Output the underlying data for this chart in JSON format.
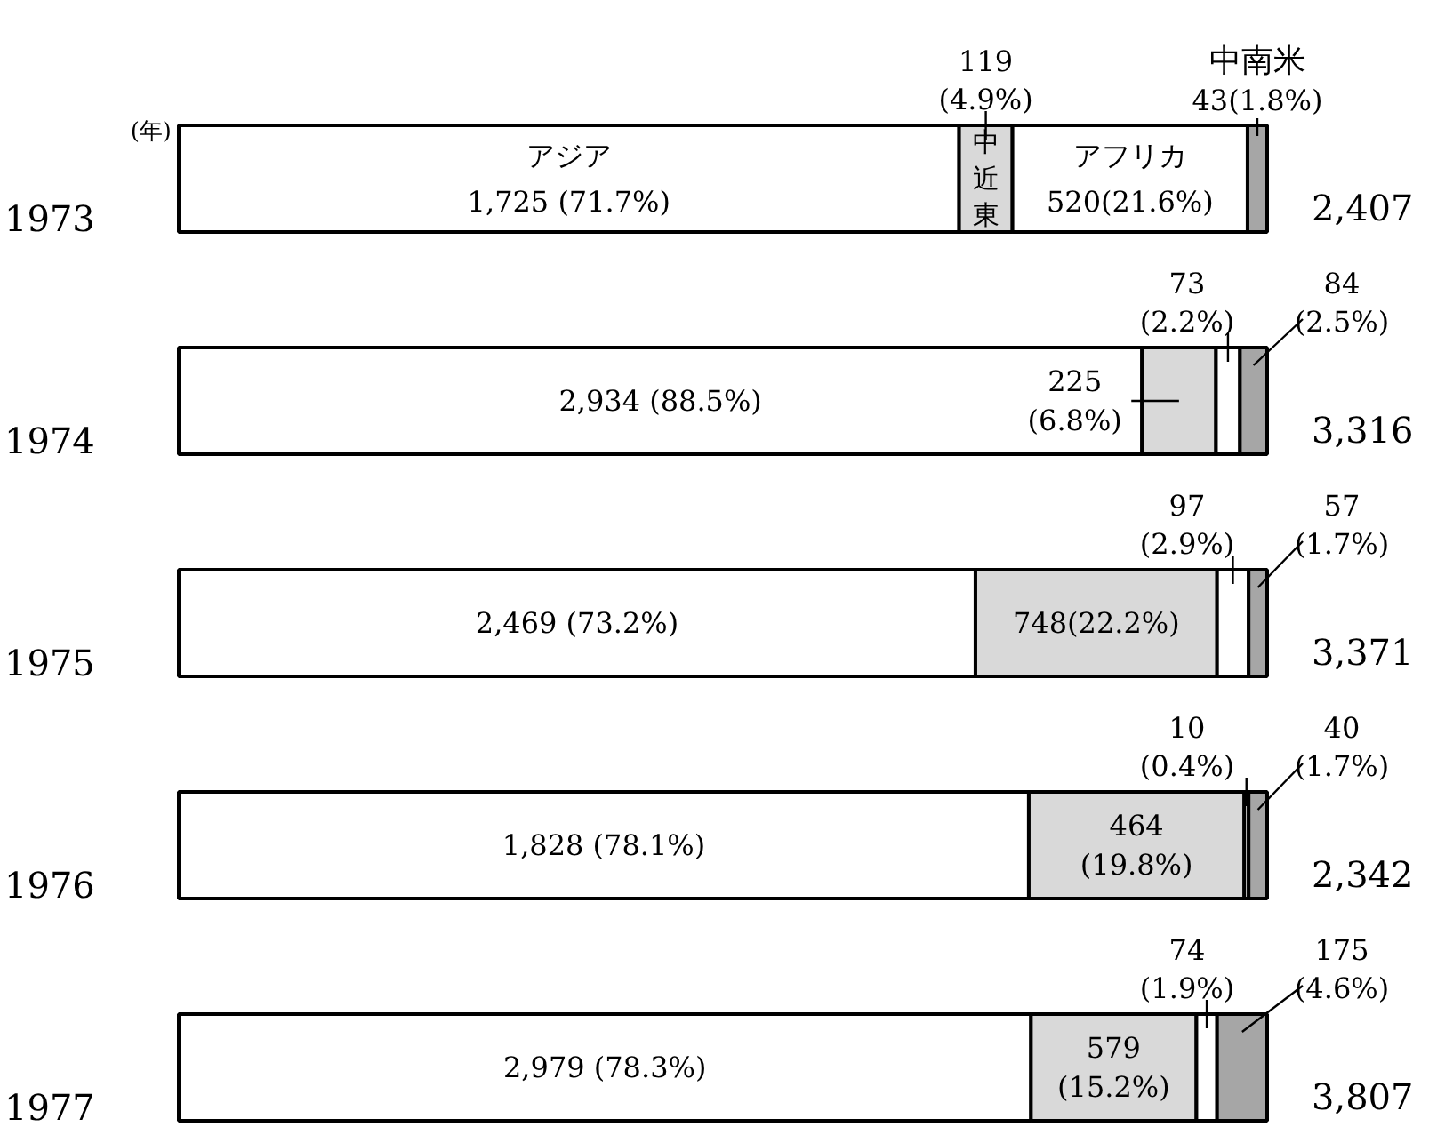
{
  "chart_data": {
    "type": "bar",
    "orientation": "horizontal",
    "stacked": true,
    "categories": [
      "1973",
      "1974",
      "1975",
      "1976",
      "1977"
    ],
    "ylabel": "(年)",
    "xlim": [
      0,
      100
    ],
    "tick_labels": "y",
    "series": [
      {
        "name": "アジア",
        "color": "#ffffff",
        "values": [
          71.7,
          88.5,
          73.2,
          78.1,
          78.3
        ],
        "value_labels": [
          "1,725 (71.7%)",
          "2,934 (88.5%)",
          "2,469 (73.2%)",
          "1,828 (78.1%)",
          "2,979 (78.3%)"
        ]
      },
      {
        "name": "中近東",
        "color": "#d9d9d9",
        "values": [
          4.9,
          6.8,
          22.2,
          19.8,
          15.2
        ],
        "value_labels": [
          "119 (4.9%)",
          "225 (6.8%)",
          "748(22.2%)",
          "464 (19.8%)",
          "579 (15.2%)"
        ]
      },
      {
        "name": "アフリカ",
        "color": "#ffffff",
        "values": [
          21.6,
          2.2,
          2.9,
          0.4,
          1.9
        ],
        "value_labels": [
          "520(21.6%)",
          "73 (2.2%)",
          "97 (2.9%)",
          "10 (0.4%)",
          "74 (1.9%)"
        ]
      },
      {
        "name": "中南米",
        "color": "#a6a6a6",
        "values": [
          1.8,
          2.5,
          1.7,
          1.7,
          4.6
        ],
        "value_labels": [
          "43(1.8%)",
          "84 (2.5%)",
          "57 (1.7%)",
          "40 (1.7%)",
          "175 (4.6%)"
        ]
      }
    ],
    "annotations": [
      "2,407",
      "3,316",
      "3,371",
      "2,342",
      "3,807"
    ]
  }
}
